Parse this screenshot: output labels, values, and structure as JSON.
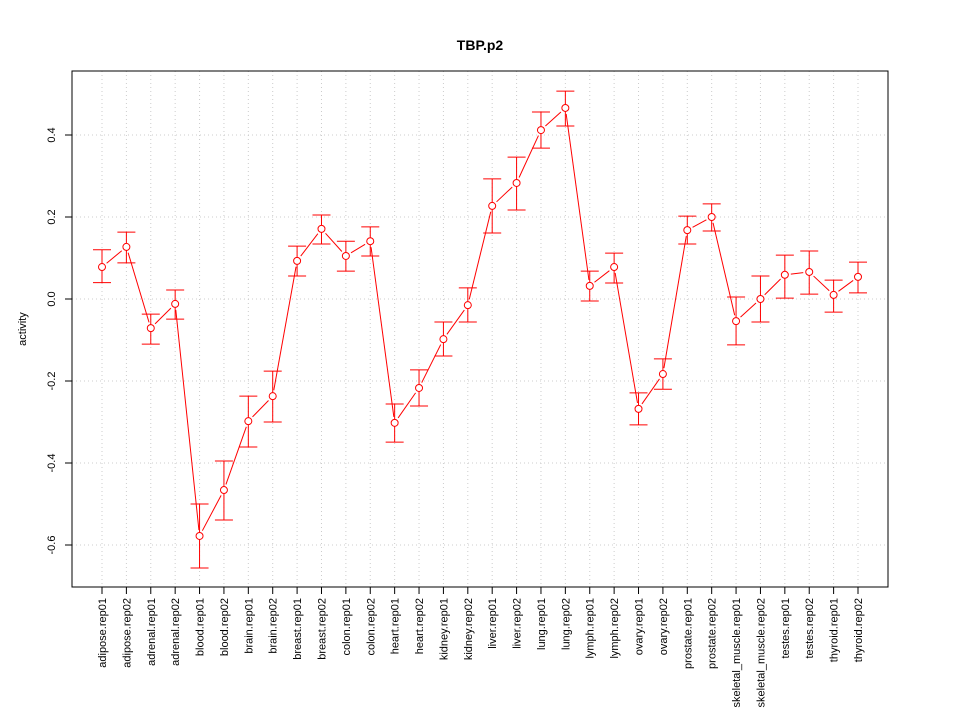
{
  "chart_data": {
    "type": "line",
    "title": "TBP.p2",
    "xlabel": "",
    "ylabel": "activity",
    "ylim": [
      -0.7,
      0.55
    ],
    "yticks": [
      -0.6,
      -0.4,
      -0.2,
      0.0,
      0.2,
      0.4
    ],
    "ytick_labels": [
      "-0.6",
      "-0.4",
      "-0.2",
      "0.0",
      "0.2",
      "0.4"
    ],
    "grid": true,
    "line_color": "#ff0000",
    "categories": [
      "adipose.rep01",
      "adipose.rep02",
      "adrenal.rep01",
      "adrenal.rep02",
      "blood.rep01",
      "blood.rep02",
      "brain.rep01",
      "brain.rep02",
      "breast.rep01",
      "breast.rep02",
      "colon.rep01",
      "colon.rep02",
      "heart.rep01",
      "heart.rep02",
      "kidney.rep01",
      "kidney.rep02",
      "liver.rep01",
      "liver.rep02",
      "lung.rep01",
      "lung.rep02",
      "lymph.rep01",
      "lymph.rep02",
      "ovary.rep01",
      "ovary.rep02",
      "prostate.rep01",
      "prostate.rep02",
      "skeletal_muscle.rep01",
      "skeletal_muscle.rep02",
      "testes.rep01",
      "testes.rep02",
      "thyroid.rep01",
      "thyroid.rep02"
    ],
    "values": [
      0.078,
      0.127,
      -0.071,
      -0.012,
      -0.578,
      -0.466,
      -0.298,
      -0.237,
      0.093,
      0.171,
      0.105,
      0.141,
      -0.302,
      -0.217,
      -0.098,
      -0.015,
      0.227,
      0.283,
      0.412,
      0.466,
      0.032,
      0.078,
      -0.268,
      -0.183,
      0.168,
      0.2,
      -0.054,
      0.0,
      0.059,
      0.066,
      0.01,
      0.054
    ],
    "upper": [
      0.12,
      0.163,
      -0.037,
      0.022,
      -0.5,
      -0.395,
      -0.237,
      -0.176,
      0.129,
      0.205,
      0.141,
      0.176,
      -0.256,
      -0.173,
      -0.056,
      0.027,
      0.293,
      0.346,
      0.456,
      0.507,
      0.068,
      0.112,
      -0.229,
      -0.146,
      0.202,
      0.232,
      0.005,
      0.056,
      0.107,
      0.117,
      0.046,
      0.09
    ],
    "lower": [
      0.04,
      0.088,
      -0.11,
      -0.049,
      -0.656,
      -0.539,
      -0.361,
      -0.3,
      0.056,
      0.134,
      0.068,
      0.105,
      -0.349,
      -0.261,
      -0.139,
      -0.056,
      0.161,
      0.217,
      0.368,
      0.422,
      -0.005,
      0.039,
      -0.307,
      -0.22,
      0.134,
      0.166,
      -0.112,
      -0.056,
      0.002,
      0.012,
      -0.032,
      0.015
    ]
  }
}
